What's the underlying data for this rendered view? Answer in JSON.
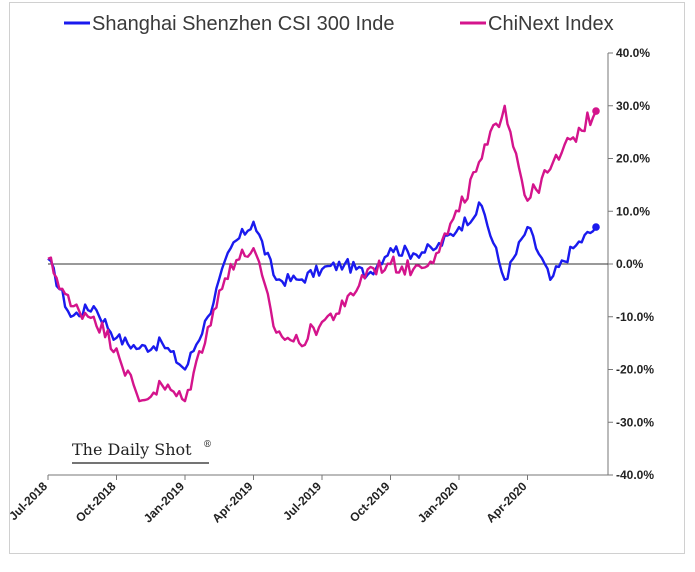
{
  "chart_data": {
    "type": "line",
    "title": "",
    "xlabel": "",
    "ylabel": "",
    "ylim": [
      -40,
      40
    ],
    "y_tick_format": "percent_1dp",
    "y_ticks": [
      "40.0%",
      "30.0%",
      "20.0%",
      "10.0%",
      "0.0%",
      "-10.0%",
      "-20.0%",
      "-30.0%",
      "-40.0%"
    ],
    "x_ticks": [
      "Jul-2018",
      "Oct-2018",
      "Jan-2019",
      "Apr-2019",
      "Jul-2019",
      "Oct-2019",
      "Jan-2020",
      "Apr-2020"
    ],
    "zero_line": true,
    "legend_position": "top",
    "source_label": "The Daily Shot",
    "source_mark": "®",
    "x": [
      "2018-07",
      "2018-08",
      "2018-09",
      "2018-10",
      "2018-11",
      "2018-12",
      "2019-01",
      "2019-02",
      "2019-03",
      "2019-04",
      "2019-05",
      "2019-06",
      "2019-07",
      "2019-08",
      "2019-09",
      "2019-10",
      "2019-11",
      "2019-12",
      "2020-01",
      "2020-02",
      "2020-03",
      "2020-04",
      "2020-05",
      "2020-06",
      "2020-07"
    ],
    "series": [
      {
        "name": "Shanghai Shenzhen CSI 300 Inde",
        "color": "#1a1aee",
        "values": [
          1,
          -10,
          -8,
          -14,
          -16,
          -15,
          -20,
          -10,
          3,
          8,
          -3,
          -3,
          -1,
          0,
          -2,
          3,
          2,
          3,
          7,
          11,
          -3,
          7,
          -3,
          3,
          7
        ]
      },
      {
        "name": "ChiNext Index",
        "color": "#d4148c",
        "values": [
          1,
          -8,
          -10,
          -16,
          -26,
          -23,
          -26,
          -12,
          0,
          3,
          -13,
          -15,
          -11,
          -8,
          -1,
          0,
          -1,
          2,
          10,
          20,
          30,
          12,
          18,
          24,
          29
        ]
      }
    ]
  }
}
